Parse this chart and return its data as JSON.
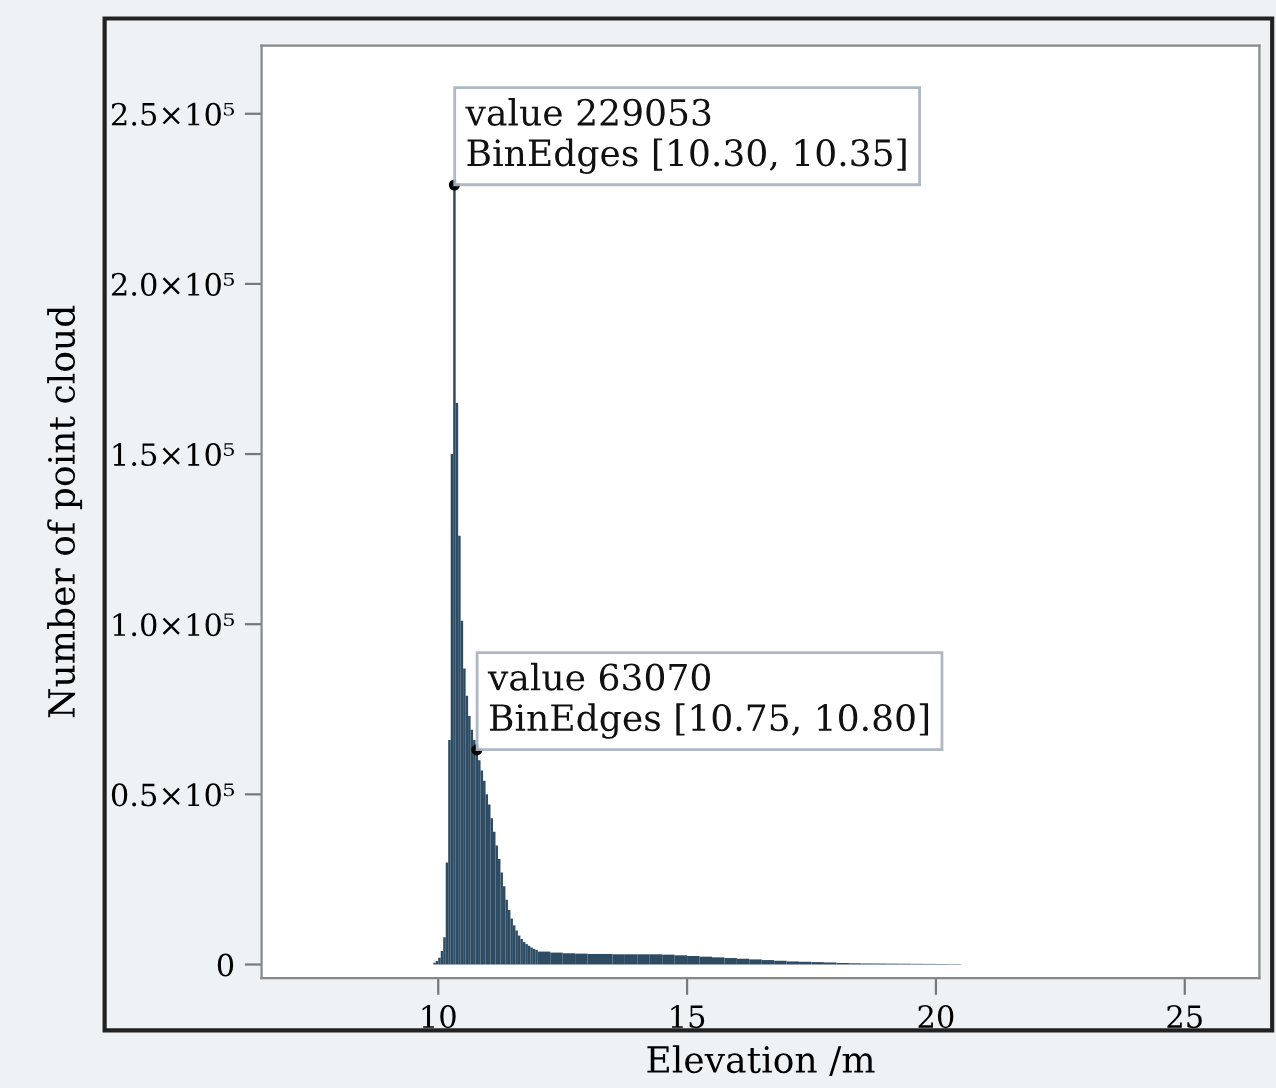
{
  "chart_data": {
    "type": "histogram",
    "xlabel": "Elevation /m",
    "ylabel": "Number of point cloud",
    "bins": [
      9.9,
      9.95,
      10.0,
      10.05,
      10.1,
      10.15,
      10.2,
      10.25,
      10.3,
      10.35,
      10.4,
      10.45,
      10.5,
      10.55,
      10.6,
      10.65,
      10.7,
      10.75,
      10.8,
      10.85,
      10.9,
      10.95,
      11.0,
      11.05,
      11.1,
      11.15,
      11.2,
      11.25,
      11.3,
      11.35,
      11.4,
      11.45,
      11.5,
      11.55,
      11.6,
      11.65,
      11.7,
      11.75,
      11.8,
      11.85,
      11.9,
      11.95,
      12.0,
      12.25,
      12.5,
      12.75,
      13.0,
      13.25,
      13.5,
      13.75,
      14.0,
      14.25,
      14.5,
      14.75,
      15.0,
      15.25,
      15.5,
      15.75,
      16.0,
      16.25,
      16.5,
      16.75,
      17.0,
      17.25,
      17.5,
      17.75,
      18.0,
      18.25,
      18.5,
      18.75,
      19.0,
      19.25,
      19.5,
      19.75,
      20.0,
      20.25,
      20.5
    ],
    "values": [
      500,
      1000,
      2000,
      4000,
      8000,
      30000,
      66000,
      150000,
      229053,
      165000,
      126000,
      101000,
      87000,
      79000,
      73000,
      69000,
      66000,
      63070,
      60000,
      57000,
      54000,
      50000,
      47000,
      43000,
      39000,
      35000,
      31000,
      27000,
      23000,
      19000,
      16000,
      13500,
      11500,
      10000,
      8500,
      7500,
      6600,
      6000,
      5500,
      5000,
      4600,
      4300,
      3800,
      3500,
      3300,
      3200,
      3100,
      3100,
      3000,
      3000,
      3000,
      3000,
      2900,
      2700,
      2500,
      2300,
      2100,
      1900,
      1700,
      1500,
      1300,
      1100,
      900,
      800,
      700,
      600,
      450,
      350,
      300,
      280,
      250,
      230,
      200,
      180,
      150,
      120
    ],
    "color": "#2d4b63",
    "xlim": [
      6.45,
      26.5
    ],
    "ylim": [
      -4000,
      270000
    ],
    "xticks": [
      10,
      15,
      20,
      25
    ],
    "yticks": [
      {
        "value": 0,
        "label": "0"
      },
      {
        "value": 50000,
        "label": "0.5×10⁵"
      },
      {
        "value": 100000,
        "label": "1.0×10⁵"
      },
      {
        "value": 150000,
        "label": "1.5×10⁵"
      },
      {
        "value": 200000,
        "label": "2.0×10⁵"
      },
      {
        "value": 250000,
        "label": "2.5×10⁵"
      }
    ],
    "grid": false,
    "legend": false,
    "annotations": [
      {
        "text": "value 229053\nBinEdges [10.30, 10.35]",
        "x": 10.325,
        "y": 229053
      },
      {
        "text": "value 63070\nBinEdges [10.75, 10.80]",
        "x": 10.775,
        "y": 63070
      }
    ]
  }
}
